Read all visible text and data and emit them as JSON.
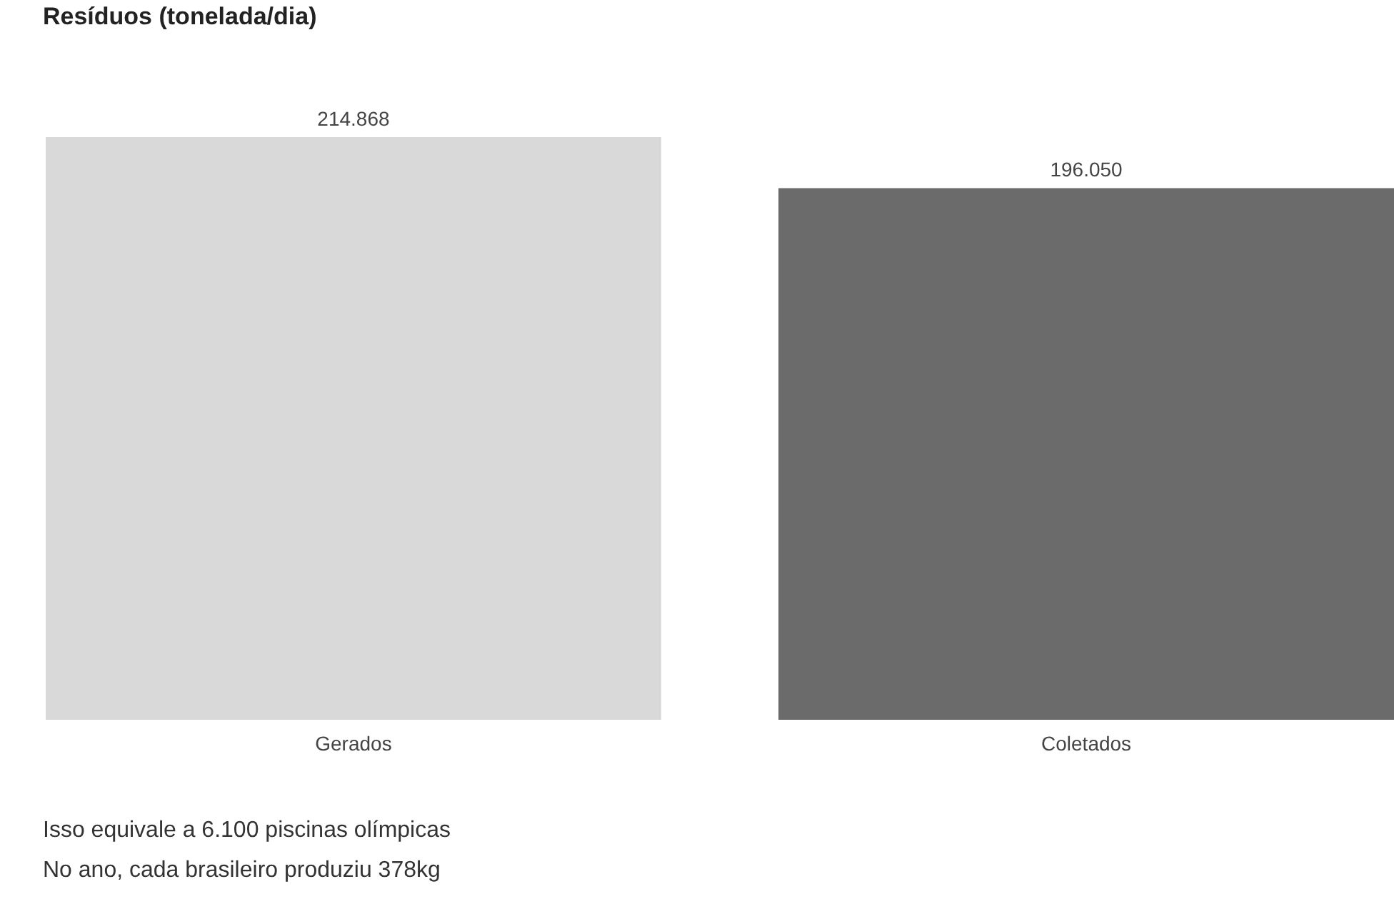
{
  "chart_data": {
    "type": "bar",
    "title": "Resíduos (tonelada/dia)",
    "categories": [
      "Gerados",
      "Coletados"
    ],
    "values": [
      214868,
      196050
    ],
    "value_labels": [
      "214.868",
      "196.050"
    ],
    "colors": [
      "#d9d9d9",
      "#6b6b6b"
    ],
    "annotations": [
      "Isso equivale a 6.100 piscinas olímpicas",
      "No ano, cada brasileiro produziu 378kg"
    ]
  }
}
